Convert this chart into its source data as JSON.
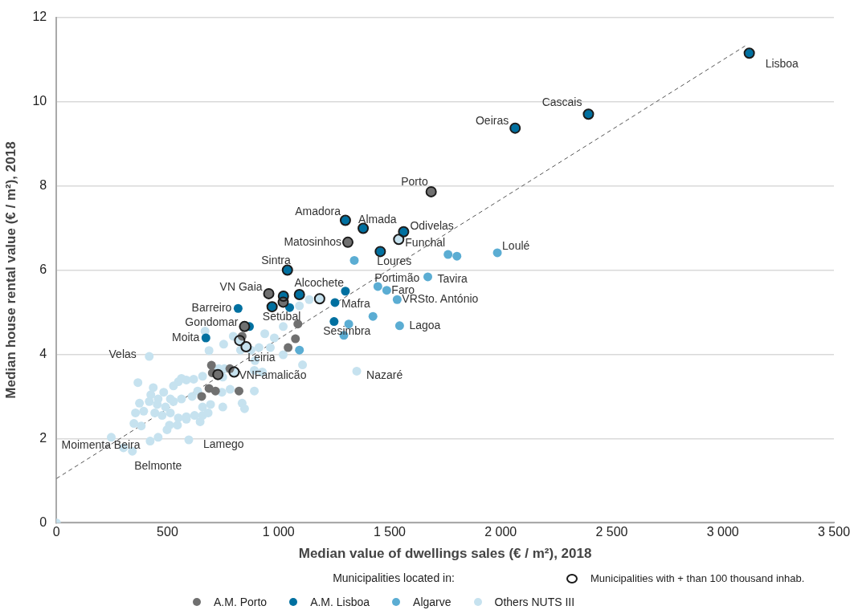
{
  "chart_data": {
    "type": "scatter",
    "xlabel": "Median value of dwellings sales (€ / m²), 2018",
    "ylabel": "Median house rental value (€ / m²), 2018",
    "legend_title": "Municipalities located in:",
    "legend": "bottom",
    "grid": "y",
    "marker": "circle",
    "xlim": [
      0,
      3500
    ],
    "ylim": [
      0,
      12
    ],
    "xticks": [
      0,
      500,
      {
        "value": 1000,
        "label": "1 000"
      },
      {
        "value": 1500,
        "label": "1 500"
      },
      {
        "value": 2000,
        "label": "2 000"
      },
      {
        "value": 2500,
        "label": "2 500"
      },
      {
        "value": 3000,
        "label": "3 000"
      },
      {
        "value": 3500,
        "label": "3 500"
      }
    ],
    "yticks": [
      0,
      2,
      4,
      6,
      8,
      10,
      12
    ],
    "series": [
      {
        "type": "line",
        "color": "#555555",
        "line_style": "dashed",
        "marker": "none",
        "x": [
          0,
          3100
        ],
        "values": [
          1.05,
          11.32
        ]
      },
      {
        "name": "Others NUTS III",
        "color": "#c6e2ef",
        "x": [
          0,
          418,
          1352,
          596,
          342,
          247,
          302,
          669,
          687,
          753,
          796,
          829,
          938,
          981,
          1021,
          912,
          963,
          894,
          876,
          1021,
          1108,
          1094,
          1138,
          891,
          367,
          436,
          425,
          483,
          527,
          549,
          585,
          618,
          658,
          731,
          756,
          374,
          418,
          454,
          491,
          527,
          563,
          611,
          636,
          745,
          782,
          836,
          847,
          749,
          694,
          658,
          356,
          393,
          443,
          476,
          513,
          549,
          585,
          622,
          658,
          683,
          382,
          349,
          509,
          545,
          585,
          647,
          498,
          458,
          422,
          891,
          927,
          749,
          563,
          513,
          458,
          1541,
          1185,
          825,
          854,
          800
        ],
        "values": [
          0,
          3.95,
          3.6,
          1.97,
          1.7,
          2.03,
          1.78,
          4.55,
          4.09,
          4.24,
          4.43,
          4.1,
          4.49,
          4.39,
          4.66,
          4.16,
          4.16,
          3.85,
          4.1,
          3.99,
          3.75,
          5.15,
          5.3,
          3.13,
          3.33,
          3.21,
          3.04,
          3.1,
          3.25,
          3.35,
          3.39,
          3.41,
          3.48,
          3.66,
          3.66,
          2.84,
          2.88,
          2.81,
          2.75,
          2.88,
          2.94,
          3.0,
          3.13,
          3.1,
          3.17,
          2.84,
          2.71,
          2.75,
          2.81,
          2.75,
          2.61,
          2.65,
          2.61,
          2.55,
          2.61,
          2.49,
          2.52,
          2.55,
          2.55,
          2.61,
          2.3,
          2.36,
          2.32,
          2.32,
          2.46,
          2.4,
          2.21,
          2.03,
          1.94,
          3.62,
          3.58,
          3.46,
          3.43,
          2.94,
          2.94,
          6.73,
          5.32,
          4.33,
          4.18,
          3.58
        ]
      },
      {
        "name": "Algarve",
        "color": "#5badd3",
        "x": [
          1985,
          1763,
          1803,
          1341,
          1672,
          1447,
          1487,
          1534,
          1425,
          1545,
          1316,
          1294,
          1094
        ],
        "values": [
          6.41,
          6.37,
          6.33,
          6.23,
          5.84,
          5.61,
          5.52,
          5.3,
          4.9,
          4.68,
          4.72,
          4.45,
          4.1
        ]
      },
      {
        "name": "A.M. Lisboa",
        "color": "#0070a0",
        "x": [
          3119,
          2395,
          2065,
          1301,
          1381,
          1563,
          1458,
          1040,
          1022,
          1094,
          971,
          1050,
          1301,
          1254,
          1250,
          818,
          673,
          869
        ],
        "values": [
          11.15,
          9.7,
          9.37,
          7.18,
          6.99,
          6.91,
          6.44,
          6.0,
          5.38,
          5.42,
          5.13,
          5.11,
          5.5,
          5.23,
          4.78,
          5.09,
          4.39,
          4.66
        ]
      },
      {
        "name": "A.M. Porto",
        "color": "#707070",
        "x": [
          1687,
          1312,
          956,
          1021,
          847,
          1087,
          1076,
          1043,
          836,
          698,
          727,
          781,
          687,
          716,
          822,
          654,
          702
        ],
        "values": [
          7.86,
          6.66,
          5.44,
          5.24,
          4.66,
          4.72,
          4.37,
          4.16,
          4.43,
          3.74,
          3.52,
          3.66,
          3.19,
          3.13,
          3.13,
          3.0,
          3.56
        ]
      },
      {
        "name": "Municipalities with + than 100 thousand inhab.",
        "color": "#1a1a1a",
        "marker": "circle",
        "x": [
          3119,
          2395,
          2065,
          1687,
          1301,
          1381,
          1563,
          1541,
          1312,
          1458,
          1040,
          956,
          1022,
          1094,
          1021,
          971,
          1185,
          847,
          825,
          854,
          727,
          800
        ],
        "values": [
          11.15,
          9.7,
          9.37,
          7.86,
          7.18,
          6.99,
          6.91,
          6.73,
          6.66,
          6.44,
          6.0,
          5.44,
          5.38,
          5.42,
          5.24,
          5.13,
          5.32,
          4.66,
          4.33,
          4.18,
          3.52,
          3.58
        ]
      }
    ],
    "annotations": [
      {
        "text": "Lisboa",
        "x": 3119,
        "y": 11.15
      },
      {
        "text": "Cascais",
        "x": 2395,
        "y": 9.7
      },
      {
        "text": "Oeiras",
        "x": 2065,
        "y": 9.37
      },
      {
        "text": "Porto",
        "x": 1687,
        "y": 7.86
      },
      {
        "text": "Amadora",
        "x": 1301,
        "y": 7.18
      },
      {
        "text": "Almada",
        "x": 1381,
        "y": 6.99
      },
      {
        "text": "Odivelas",
        "x": 1563,
        "y": 6.91
      },
      {
        "text": "Funchal",
        "x": 1541,
        "y": 6.73
      },
      {
        "text": "Matosinhos",
        "x": 1312,
        "y": 6.66
      },
      {
        "text": "Loures",
        "x": 1458,
        "y": 6.44
      },
      {
        "text": "Sintra",
        "x": 1040,
        "y": 6.0
      },
      {
        "text": "VN Gaia",
        "x": 956,
        "y": 5.44
      },
      {
        "text": "Setúbal",
        "x": 1050,
        "y": 5.11
      },
      {
        "text": "Alcochete",
        "x": 1301,
        "y": 5.5
      },
      {
        "text": "Mafra",
        "x": 1254,
        "y": 5.23
      },
      {
        "text": "Sesimbra",
        "x": 1250,
        "y": 4.78
      },
      {
        "text": "Portimão",
        "x": 1447,
        "y": 5.61
      },
      {
        "text": "Faro",
        "x": 1487,
        "y": 5.52
      },
      {
        "text": "VRSto. António",
        "x": 1534,
        "y": 5.3
      },
      {
        "text": "Tavira",
        "x": 1672,
        "y": 5.84
      },
      {
        "text": "Loulé",
        "x": 1985,
        "y": 6.41
      },
      {
        "text": "Lagoa",
        "x": 1545,
        "y": 4.68
      },
      {
        "text": "Nazaré",
        "x": 1352,
        "y": 3.6
      },
      {
        "text": "Barreiro",
        "x": 818,
        "y": 5.09
      },
      {
        "text": "Gondomar",
        "x": 847,
        "y": 4.66
      },
      {
        "text": "Moita",
        "x": 673,
        "y": 4.39
      },
      {
        "text": "Leiria",
        "x": 854,
        "y": 4.18
      },
      {
        "text": "VNFamalicão",
        "x": 800,
        "y": 3.58
      },
      {
        "text": "Velas",
        "x": 418,
        "y": 3.95
      },
      {
        "text": "Lamego",
        "x": 596,
        "y": 1.97
      },
      {
        "text": "Belmonte",
        "x": 342,
        "y": 1.7
      },
      {
        "text": "Moimenta Beira",
        "x": 247,
        "y": 2.03
      }
    ]
  }
}
